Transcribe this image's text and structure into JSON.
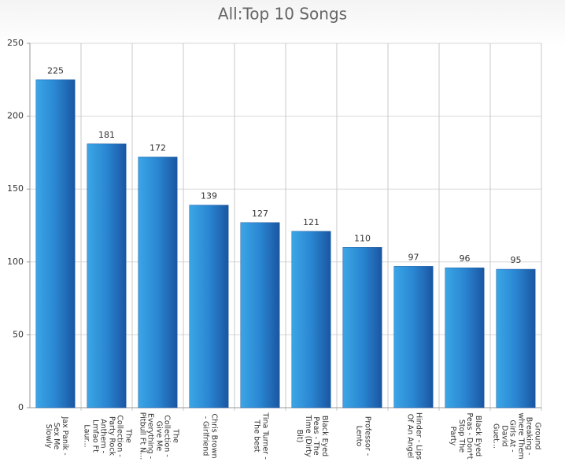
{
  "chart_data": {
    "type": "bar",
    "title": "All:Top 10 Songs",
    "categories": [
      "Jax Panik - Sex Me Slowly",
      "The Collection - Party Rock Anthem - Lmfao Ft Laur...",
      "The Collection - Give Me Everything - Pitbull Ft N...",
      "Chris Brown - Girlfriend",
      "Tina Turner - The best",
      "Black Eyed Peas - The Time (Dirty Bit)",
      "Professor - Lento",
      "Hinder - Lips Of An Angel",
      "Black Eyed Peas - Don*t Stop The Party",
      "Ground Breaking - where Them Girls At - David Guet..."
    ],
    "values": [
      225,
      181,
      172,
      139,
      127,
      121,
      110,
      97,
      96,
      95
    ],
    "color": "#2b7fcc",
    "ylim": [
      0,
      250
    ],
    "yticks": [
      0,
      50,
      100,
      150,
      200,
      250
    ],
    "grid": true
  }
}
